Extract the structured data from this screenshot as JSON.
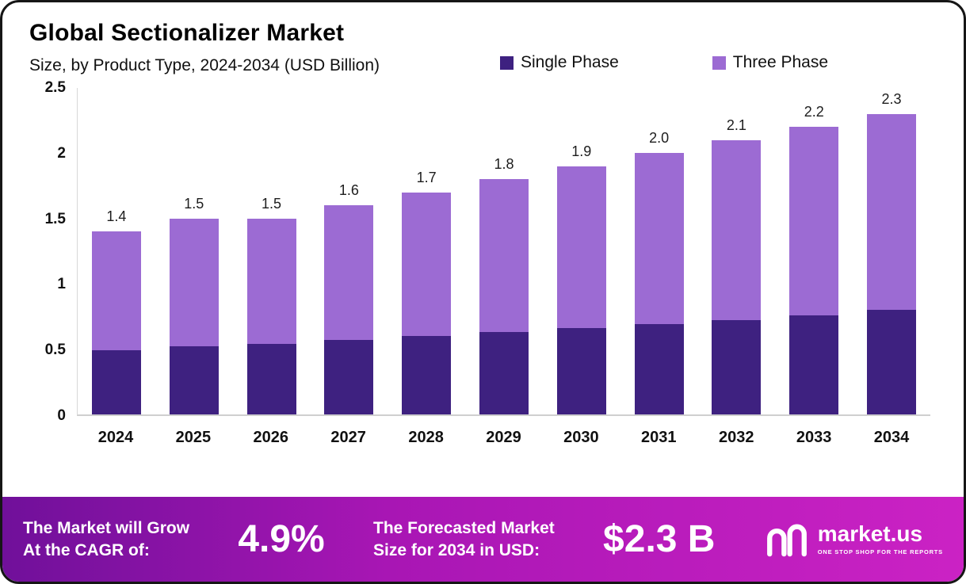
{
  "header": {
    "title": "Global Sectionalizer Market",
    "subtitle": "Size, by Product Type, 2024-2034 (USD Billion)"
  },
  "legend": {
    "items": [
      {
        "label": "Single Phase",
        "color": "#3e2180"
      },
      {
        "label": "Three Phase",
        "color": "#9c6bd3"
      }
    ]
  },
  "chart_data": {
    "type": "bar",
    "stacked": true,
    "title": "Global Sectionalizer Market Size, by Product Type, 2024-2034 (USD Billion)",
    "categories": [
      "2024",
      "2025",
      "2026",
      "2027",
      "2028",
      "2029",
      "2030",
      "2031",
      "2032",
      "2033",
      "2034"
    ],
    "series": [
      {
        "name": "Single Phase",
        "color": "#3e2180",
        "values": [
          0.49,
          0.52,
          0.54,
          0.57,
          0.6,
          0.63,
          0.66,
          0.69,
          0.72,
          0.76,
          0.8
        ]
      },
      {
        "name": "Three Phase",
        "color": "#9c6bd3",
        "values": [
          0.91,
          0.98,
          0.96,
          1.03,
          1.1,
          1.17,
          1.24,
          1.31,
          1.38,
          1.44,
          1.5
        ]
      }
    ],
    "total_labels": [
      "1.4",
      "1.5",
      "1.5",
      "1.6",
      "1.7",
      "1.8",
      "1.9",
      "2.0",
      "2.1",
      "2.2",
      "2.3"
    ],
    "xlabel": "",
    "ylabel": "",
    "ylim": [
      0,
      2.5
    ],
    "yticks": [
      0,
      0.5,
      1,
      1.5,
      2,
      2.5
    ],
    "ytick_labels": [
      "0",
      "0.5",
      "1",
      "1.5",
      "2",
      "2.5"
    ],
    "legend_position": "top-right",
    "grid": false
  },
  "banner": {
    "cagr_label_line1": "The Market will Grow",
    "cagr_label_line2": "At the CAGR of:",
    "cagr_value": "4.9%",
    "forecast_label_line1": "The Forecasted Market",
    "forecast_label_line2": "Size for 2034 in USD:",
    "forecast_value": "$2.3 B",
    "logo_text": "market.us",
    "logo_tagline": "ONE STOP SHOP FOR THE REPORTS"
  }
}
